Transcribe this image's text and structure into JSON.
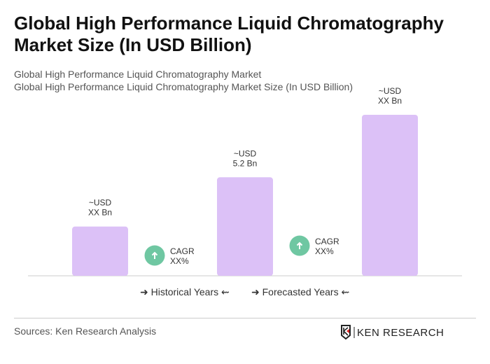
{
  "title": "Global High Performance Liquid Chromatography Market Size (In USD Billion)",
  "subtitle1": "Global High Performance Liquid Chromatography Market",
  "subtitle2": "Global High Performance Liquid Chromatography Market Size (In USD Billion)",
  "colors": {
    "bar": "#dcc1f7",
    "cagr": "#6fc7a2",
    "axis": "#cccccc"
  },
  "chart_data": {
    "type": "bar",
    "categories": [
      "",
      "",
      ""
    ],
    "values": [
      2.6,
      5.2,
      8.5
    ],
    "data_labels": [
      [
        "~USD",
        "XX Bn"
      ],
      [
        "~USD",
        "5.2 Bn"
      ],
      [
        "~USD",
        "XX Bn"
      ]
    ],
    "cagr": [
      {
        "label": "CAGR",
        "value": "XX%",
        "icon": "arrow-up-icon"
      },
      {
        "label": "CAGR",
        "value": "XX%",
        "icon": "arrow-up-icon"
      }
    ],
    "ylim": [
      0,
      10
    ],
    "grid": false
  },
  "legend": {
    "historical": "Historical Years",
    "forecasted": "Forecasted Years"
  },
  "sources": "Sources: Ken Research Analysis",
  "logo": "KEN RESEARCH"
}
